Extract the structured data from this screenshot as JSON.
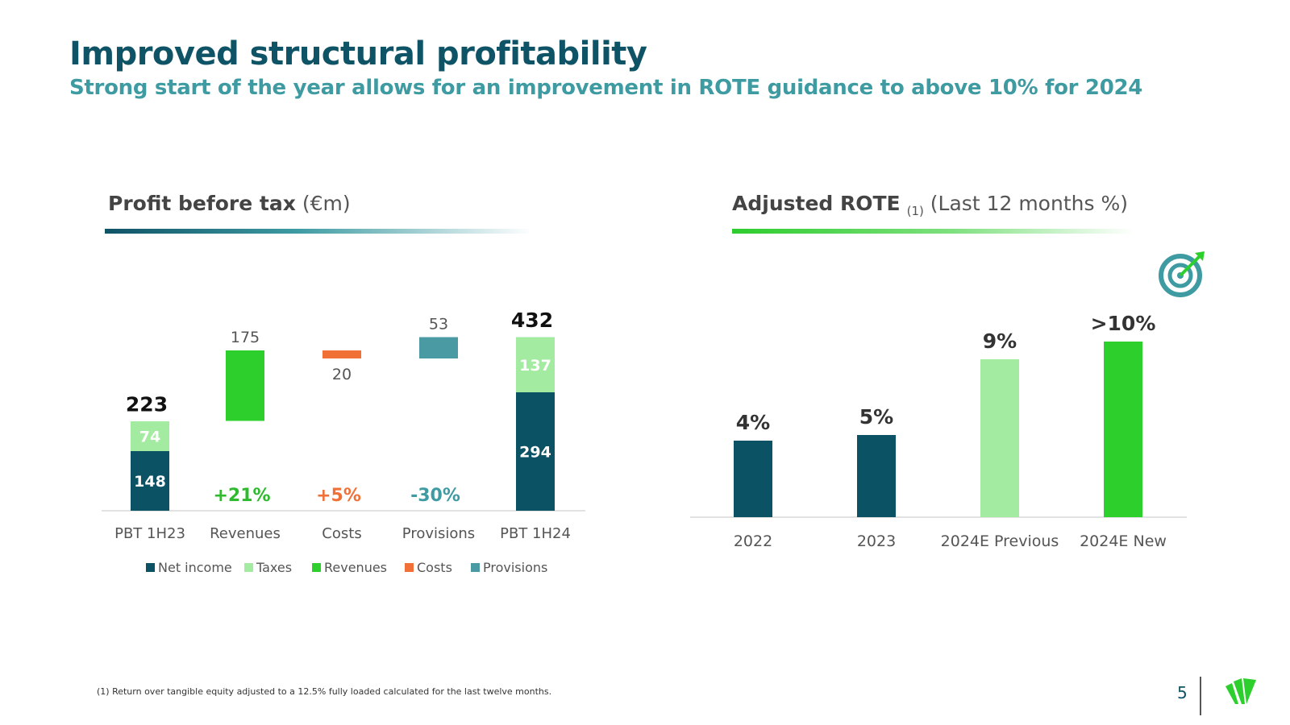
{
  "header": {
    "title": "Improved structural profitability",
    "subtitle": "Strong start of the year allows for an improvement in ROTE guidance to above 10% for 2024"
  },
  "left_panel": {
    "title_bold": "Profit before tax",
    "title_unit": "(€m)"
  },
  "right_panel": {
    "title_bold": "Adjusted ROTE",
    "title_sub": "(1)",
    "title_rest": "(Last 12 months %)"
  },
  "footnote": "(1) Return over tangible equity adjusted to a 12.5% fully loaded calculated for the last twelve months.",
  "page_number": "5",
  "colors": {
    "net_income": "#0b5264",
    "taxes": "#a3eba0",
    "revenues": "#2dcf2d",
    "costs": "#f07038",
    "provisions": "#4a9aa4",
    "green_text": "#2dbb2d",
    "orange_text": "#f07038",
    "teal_text": "#3e9ba2"
  },
  "chart_data": [
    {
      "type": "bar",
      "subtype": "waterfall",
      "title": "Profit before tax (€m)",
      "categories": [
        "PBT 1H23",
        "Revenues",
        "Costs",
        "Provisions",
        "PBT 1H24"
      ],
      "series": [
        {
          "name": "Net income",
          "values": [
            148,
            null,
            null,
            null,
            294
          ]
        },
        {
          "name": "Taxes",
          "values": [
            74,
            null,
            null,
            null,
            137
          ]
        },
        {
          "name": "Revenues",
          "values": [
            null,
            175,
            null,
            null,
            null
          ]
        },
        {
          "name": "Costs",
          "values": [
            null,
            null,
            -20,
            null,
            null
          ]
        },
        {
          "name": "Provisions",
          "values": [
            null,
            null,
            null,
            53,
            null
          ]
        }
      ],
      "totals": [
        223,
        null,
        null,
        null,
        432
      ],
      "value_labels": [
        "223",
        "175",
        "20",
        "53",
        "432"
      ],
      "segment_labels": {
        "net_income": [
          "148",
          "294"
        ],
        "taxes": [
          "74",
          "137"
        ]
      },
      "change_labels": [
        "+21%",
        "+5%",
        "-30%"
      ],
      "legend": [
        "Net income",
        "Taxes",
        "Revenues",
        "Costs",
        "Provisions"
      ],
      "ylim": [
        0,
        480
      ]
    },
    {
      "type": "bar",
      "title": "Adjusted ROTE (Last 12 months %)",
      "categories": [
        "2022",
        "2023",
        "2024E Previous",
        "2024E New"
      ],
      "values": [
        4,
        5,
        9,
        10
      ],
      "labels": [
        "4%",
        "5%",
        "9%",
        ">10%"
      ],
      "ylim": [
        0,
        12
      ]
    }
  ]
}
